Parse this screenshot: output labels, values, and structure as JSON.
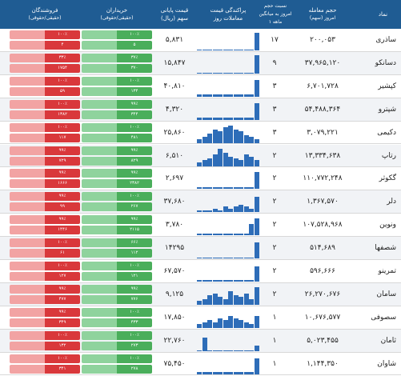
{
  "header": {
    "name": "نماد",
    "volume": "حجم معامله",
    "volume_sub": "امروز (سهم)",
    "ratio_1": "نسبت حجم",
    "ratio_2": "امروز به میانگین",
    "ratio_3": "۱ ماهه",
    "spark_1": "پراکندگی قیمت",
    "spark_2": "معاملات روز",
    "price_1": "قیمت پایانی",
    "price_2": "سهم (ریال)",
    "buyers": "خریداران",
    "buyers_sub": "(حقیقی/حقوقی)",
    "sellers": "فروشندگان",
    "sellers_sub": "(حقیقی/حقوقی)"
  },
  "rows": [
    {
      "name": "ساذری",
      "volume": "۲۰۰,۰۵۳",
      "ratio": "۱۷",
      "price": "۵,۸۳۱",
      "spark": [
        0,
        0,
        0,
        0,
        0,
        0,
        0,
        0,
        0,
        0,
        0,
        0.9
      ],
      "b_top": "۱۰۰٪",
      "b_bot": "۵",
      "s_top": "۱۰۰٪",
      "s_bot": "۴"
    },
    {
      "name": "دسانکو",
      "volume": "۳۷,۹۶۵,۱۲۰",
      "ratio": "۹",
      "price": "۱۵,۸۴۷",
      "spark": [
        0,
        0,
        0,
        0,
        0,
        0,
        0,
        0,
        0,
        0,
        0,
        0.95
      ],
      "b_top": "۳۷٪",
      "b_bot": "۳۷۰",
      "s_top": "۳۳٪",
      "s_bot": "۱۷۵۴"
    },
    {
      "name": "کپشیر",
      "volume": "۶,۷۰۱,۷۲۸",
      "ratio": "۳",
      "price": "۴۰,۸۱۰",
      "spark": [
        0.1,
        0.1,
        0.1,
        0.1,
        0.1,
        0.1,
        0.1,
        0.1,
        0.1,
        0.1,
        0.1,
        0.85
      ],
      "b_top": "۱۰۰٪",
      "b_bot": "۱۳۴",
      "s_top": "۱۰۰٪",
      "s_bot": "۵۹"
    },
    {
      "name": "شپترو",
      "volume": "۵۴,۴۸۸,۳۶۴",
      "ratio": "۳",
      "price": "۴,۳۲۰",
      "spark": [
        0.1,
        0.1,
        0.1,
        0.1,
        0.1,
        0.1,
        0.1,
        0.1,
        0.1,
        0.1,
        0.1,
        0.85
      ],
      "b_top": "۹۹٪",
      "b_bot": "۳۴۴",
      "s_top": "۱۰۰٪",
      "s_bot": "۱۳۸۲"
    },
    {
      "name": "دکیمی",
      "volume": "۳,۰۷۹,۲۲۱",
      "ratio": "۳",
      "price": "۲۵,۸۶۰",
      "spark": [
        0.2,
        0.3,
        0.5,
        0.7,
        0.6,
        0.8,
        0.9,
        0.7,
        0.6,
        0.4,
        0.3,
        0.2
      ],
      "b_top": "۱۰۰٪",
      "b_bot": "۴۸۱",
      "s_top": "۱۰۰٪",
      "s_bot": "۱۱۷"
    },
    {
      "name": "رتاپ",
      "volume": "۱۳,۳۳۴,۶۳۸",
      "ratio": "۲",
      "price": "۶,۵۱۰",
      "spark": [
        0.2,
        0.3,
        0.4,
        0.6,
        0.9,
        0.7,
        0.5,
        0.4,
        0.3,
        0.6,
        0.5,
        0.3
      ],
      "b_top": "۹۹٪",
      "b_bot": "۸۲۹",
      "s_top": "۹۹٪",
      "s_bot": "۷۲۹"
    },
    {
      "name": "گکوثر",
      "volume": "۱۱۰,۷۷۲,۲۴۸",
      "ratio": "۲",
      "price": "۲,۶۹۷",
      "spark": [
        0.1,
        0.1,
        0.1,
        0.1,
        0.1,
        0.1,
        0.1,
        0.1,
        0.1,
        0.1,
        0.1,
        0.9
      ],
      "b_top": "۹۹٪",
      "b_bot": "۲۳۸۲",
      "s_top": "۹۹٪",
      "s_bot": "۱۶۶۶"
    },
    {
      "name": "دلر",
      "volume": "۱,۳۶۷,۵۷۰",
      "ratio": "۲",
      "price": "۳۷,۶۸۰",
      "spark": [
        0.1,
        0.1,
        0.1,
        0.2,
        0.1,
        0.3,
        0.2,
        0.3,
        0.4,
        0.3,
        0.2,
        0.8
      ],
      "b_top": "۱۰۰٪",
      "b_bot": "۲۶۷",
      "s_top": "۹۹٪",
      "s_bot": "۹۹"
    },
    {
      "name": "ونوین",
      "volume": "۱۰۷,۵۲۸,۹۶۸",
      "ratio": "۲",
      "price": "۳,۷۸۰",
      "spark": [
        0.1,
        0.1,
        0.1,
        0.1,
        0.1,
        0.1,
        0.1,
        0.1,
        0.1,
        0.1,
        0.6,
        0.9
      ],
      "b_top": "۹۹٪",
      "b_bot": "۲۱۱۵",
      "s_top": "۹۹٪",
      "s_bot": "۱۴۴۶"
    },
    {
      "name": "شصفها",
      "volume": "۵۱۴,۶۸۹",
      "ratio": "۲",
      "price": "۱۴۲۹۵",
      "spark": [
        0,
        0,
        0,
        0,
        0,
        0,
        0,
        0,
        0,
        0,
        0,
        0.85
      ],
      "b_top": "۶۶٪",
      "b_bot": "۱۱۲",
      "s_top": "۱۰۰٪",
      "s_bot": "۶۱"
    },
    {
      "name": "تمرینو",
      "volume": "۵۹۶,۶۶۶",
      "ratio": "۲",
      "price": "۶۷,۵۷۰",
      "spark": [
        0.1,
        0.1,
        0.1,
        0.1,
        0.1,
        0.1,
        0.1,
        0.1,
        0.1,
        0.1,
        0.1,
        0.8
      ],
      "b_top": "۱۰۰٪",
      "b_bot": "۱۲۱",
      "s_top": "۱۰۰٪",
      "s_bot": "۱۲۷"
    },
    {
      "name": "سامان",
      "volume": "۲۶,۲۷۰,۶۷۶",
      "ratio": "۲",
      "price": "۹,۱۲۵",
      "spark": [
        0.2,
        0.3,
        0.5,
        0.6,
        0.4,
        0.3,
        0.7,
        0.5,
        0.4,
        0.6,
        0.3,
        0.9
      ],
      "b_top": "۹۹٪",
      "b_bot": "۷۷۶",
      "s_top": "۹۹٪",
      "s_bot": "۴۷۷"
    },
    {
      "name": "سصوفی",
      "volume": "۱۰,۶۷۶,۵۷۷",
      "ratio": "۱",
      "price": "۱۷,۸۵۰",
      "spark": [
        0.2,
        0.3,
        0.4,
        0.3,
        0.5,
        0.4,
        0.6,
        0.5,
        0.4,
        0.3,
        0.2,
        0.6
      ],
      "b_top": "۱۰۰٪",
      "b_bot": "۴۳۳",
      "s_top": "۹۹٪",
      "s_bot": "۳۴۹"
    },
    {
      "name": "ثامان",
      "volume": "۵,۰۲۳,۴۵۵",
      "ratio": "۱",
      "price": "۲۲,۷۶۰",
      "spark": [
        0,
        0.7,
        0,
        0,
        0,
        0,
        0,
        0,
        0,
        0,
        0,
        0.3
      ],
      "b_top": "۱۰۰٪",
      "b_bot": "۲۷۳",
      "s_top": "۱۰۰٪",
      "s_bot": "۱۳۲"
    },
    {
      "name": "شاوان",
      "volume": "۱,۱۴۴,۳۵۰",
      "ratio": "۱",
      "price": "۷۵,۴۵۰",
      "spark": [
        0.1,
        0.1,
        0.1,
        0.1,
        0.1,
        0.1,
        0.1,
        0.1,
        0.1,
        0.1,
        0.1,
        0.8
      ],
      "b_top": "۱۰۰٪",
      "b_bot": "۲۷۸",
      "s_top": "۱۰۰٪",
      "s_bot": "۳۴۱"
    }
  ],
  "colors": {
    "header_bg": "#1f5c93",
    "buy_light": "#8fd39d",
    "buy_dark": "#4aae5b",
    "sell_light": "#f2a3a3",
    "sell_dark": "#d9383b",
    "spark_bar": "#2e6db8"
  }
}
